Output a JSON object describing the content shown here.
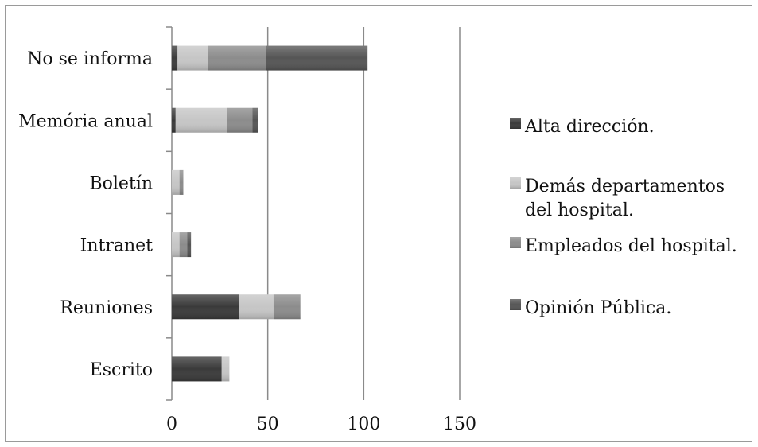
{
  "chart_data": {
    "type": "bar",
    "orientation": "horizontal",
    "stacked": true,
    "categories": [
      "No se informa",
      "Memória anual",
      "Boletín",
      "Intranet",
      "Reuniones",
      "Escrito"
    ],
    "series": [
      {
        "name": "Alta dirección.",
        "color": "#3a3a3a",
        "values": [
          3,
          2,
          0,
          0,
          35,
          26
        ]
      },
      {
        "name": "Demás departamentos del hospital.",
        "color": "#c6c6c6",
        "values": [
          16,
          27,
          4,
          4,
          18,
          4
        ]
      },
      {
        "name": "Empleados del hospital.",
        "color": "#8c8c8c",
        "values": [
          30,
          13,
          2,
          4,
          14,
          0
        ]
      },
      {
        "name": "Opinión Pública.",
        "color": "#555555",
        "values": [
          53,
          3,
          0,
          2,
          0,
          0
        ]
      }
    ],
    "legend_lines": [
      [
        "Alta dirección."
      ],
      [
        "Demás departamentos",
        "del hospital."
      ],
      [
        "Empleados del hospital."
      ],
      [
        "Opinión Pública."
      ]
    ],
    "xlim": [
      0,
      150
    ],
    "xticks": [
      "0",
      "50",
      "100",
      "150"
    ],
    "xtick_values": [
      0,
      50,
      100,
      150
    ],
    "grid": "vertical",
    "legend_position": "right",
    "title": "",
    "xlabel": "",
    "ylabel": ""
  }
}
